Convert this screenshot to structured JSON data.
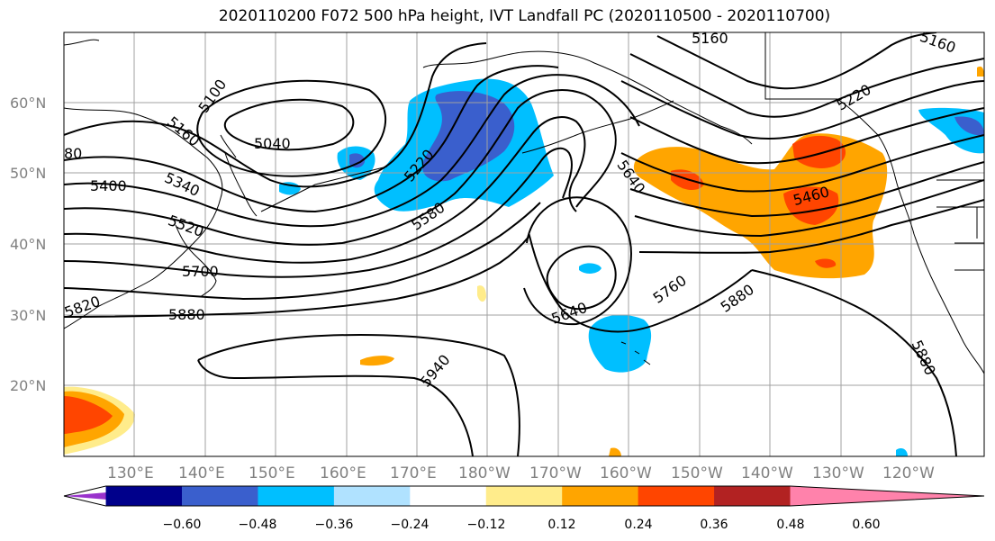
{
  "title": "2020110200 F072 500 hPa height, IVT Landfall PC (2020110500 - 2020110700)",
  "lat_labels": [
    "60°N",
    "50°N",
    "40°N",
    "30°N",
    "20°N"
  ],
  "lon_labels": [
    "130°E",
    "140°E",
    "150°E",
    "160°E",
    "170°E",
    "180°W",
    "170°W",
    "160°W",
    "150°W",
    "140°W",
    "130°W",
    "120°W"
  ],
  "contour_labels": [
    "5100",
    "5160",
    "5040",
    "5220",
    "5340",
    "5400",
    "5520",
    "5580",
    "5640",
    "5640",
    "5700",
    "5760",
    "5820",
    "5880",
    "5880",
    "5880",
    "5940",
    "5160",
    "5160",
    "5220",
    "5460",
    "80"
  ],
  "colorbar": {
    "ticks": [
      "−0.60",
      "−0.48",
      "−0.36",
      "−0.24",
      "−0.12",
      "0.12",
      "0.24",
      "0.36",
      "0.48",
      "0.60"
    ],
    "colors": [
      "#9932cc",
      "#00008b",
      "#3a5fcd",
      "#00bfff",
      "#b0e2ff",
      "#ffffff",
      "#ffec8b",
      "#ffa500",
      "#ff4500",
      "#b22222",
      "#ff82ab"
    ]
  },
  "colors": {
    "land_outline": "#000000",
    "grid": "#a0a0a0",
    "neg_fill": "#00bfff",
    "neg_fill_strong": "#3a5fcd",
    "pos_fill": "#ffa500",
    "pos_fill_strong": "#ff4500",
    "pos_fill_weak": "#ffec8b"
  }
}
